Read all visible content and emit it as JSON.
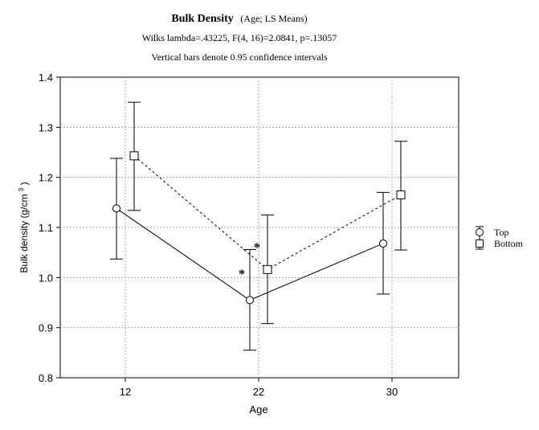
{
  "chart_data": {
    "type": "line",
    "title": "Bulk Density",
    "title_suffix": "(Age; LS Means)",
    "subtitle_lines": [
      "Wilks lambda=.43225, F(4, 16)=2.0841, p=.13057",
      "Vertical bars denote 0.95 confidence intervals"
    ],
    "xlabel": "Age",
    "ylabel": "Bulk density (g/cm3)",
    "ylabel_base": "Bulk density (g/cm",
    "ylabel_sup": "3",
    "ylabel_close": ")",
    "categories": [
      "12",
      "22",
      "30"
    ],
    "ylim": [
      0.8,
      1.4
    ],
    "yticks": [
      "0.8",
      "0.9",
      "1.0",
      "1.1",
      "1.2",
      "1.3",
      "1.4"
    ],
    "grid": true,
    "legend_position": "right",
    "series": [
      {
        "name": "Top",
        "marker": "circle",
        "line": "solid",
        "values": [
          1.138,
          0.955,
          1.068
        ],
        "ci_low": [
          1.037,
          0.855,
          0.967
        ],
        "ci_high": [
          1.238,
          1.056,
          1.17
        ]
      },
      {
        "name": "Bottom",
        "marker": "square",
        "line": "dashed",
        "values": [
          1.243,
          1.016,
          1.165
        ],
        "ci_low": [
          1.134,
          0.908,
          1.055
        ],
        "ci_high": [
          1.35,
          1.125,
          1.272
        ]
      }
    ],
    "annotations": [
      {
        "text": "*",
        "category": "22",
        "series": "Top"
      },
      {
        "text": "*",
        "category": "22",
        "series": "Bottom"
      }
    ]
  }
}
